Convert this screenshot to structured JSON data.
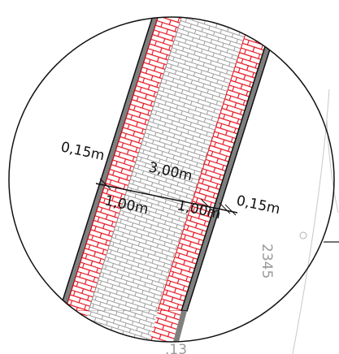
{
  "dimensions": {
    "curb_left": "0,15m",
    "road_width": "3,00m",
    "strip_left": "1,00m",
    "strip_right": "1,00m",
    "curb_right": "0,15m"
  },
  "parcel": {
    "number": "2345",
    "bottom_fragment": ".13"
  },
  "colors": {
    "curb": "#7f7f7f",
    "red_paving": "#e8111e",
    "grey_paving": "#b3b3b3",
    "outline": "#111111"
  }
}
